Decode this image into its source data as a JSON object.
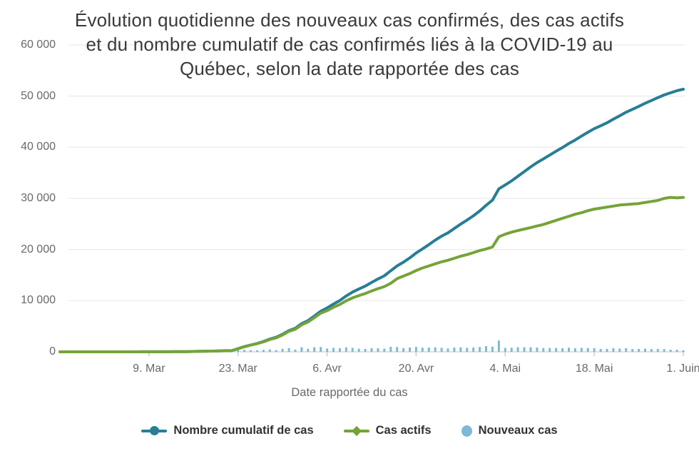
{
  "title": {
    "full": "Évolution quotidienne des nouveaux cas confirmés, des cas actifs et du nombre cumulatif de cas confirmés liés à la COVID-19 au Québec, selon la date rapportée des cas",
    "lines": [
      "Évolution quotidienne des nouveaux cas confirmés, des cas actifs",
      "et du nombre cumulatif de cas confirmés liés à la COVID-19 au",
      "Québec, selon la date rapportée des cas"
    ]
  },
  "colors": {
    "cumulative_line": "#277e95",
    "active_line": "#75a338",
    "new_cases_bar": "#7db9d6",
    "grid_line": "#e6e6e6",
    "axis_line": "#ccdbe2",
    "tick_mark": "#c5cdd2",
    "axis_text": "#66696e",
    "title_text": "#3a3a3a",
    "legend_text": "#323232"
  },
  "chart_data": {
    "type": "line+bar",
    "x_unit": "day",
    "x_range": [
      "2020-02-24",
      "2020-06-01"
    ],
    "days": 99,
    "x_axis": {
      "title": "Date rapportée du cas",
      "ticks": [
        {
          "label": "9. Mar",
          "day": 14
        },
        {
          "label": "23. Mar",
          "day": 28
        },
        {
          "label": "6. Avr",
          "day": 42
        },
        {
          "label": "20. Avr",
          "day": 56
        },
        {
          "label": "4. Mai",
          "day": 70
        },
        {
          "label": "18. Mai",
          "day": 84
        },
        {
          "label": "1. Juin",
          "day": 98
        }
      ]
    },
    "y_axis": {
      "max": 60000,
      "min": 0,
      "grid": true,
      "ticks": [
        {
          "label": "0",
          "value": 0
        },
        {
          "label": "10 000",
          "value": 10000
        },
        {
          "label": "20 000",
          "value": 20000
        },
        {
          "label": "30 000",
          "value": 30000
        },
        {
          "label": "40 000",
          "value": 40000
        },
        {
          "label": "50 000",
          "value": 50000
        },
        {
          "label": "60 000",
          "value": 60000
        }
      ]
    },
    "legend_position": "bottom-center",
    "series": [
      {
        "name": "Nombre cumulatif de cas",
        "type": "line",
        "marker": "circle",
        "color_key": "cumulative_line",
        "values": [
          0,
          0,
          0,
          0,
          1,
          1,
          1,
          1,
          1,
          2,
          2,
          3,
          4,
          7,
          8,
          9,
          13,
          17,
          24,
          35,
          41,
          74,
          94,
          121,
          139,
          181,
          219,
          221,
          628,
          1013,
          1339,
          1629,
          2021,
          2498,
          2840,
          3430,
          4162,
          4611,
          5518,
          6101,
          6997,
          7944,
          8580,
          9340,
          10031,
          10912,
          11677,
          12292,
          12846,
          13557,
          14248,
          14860,
          15857,
          16798,
          17521,
          18357,
          19319,
          20126,
          20965,
          21838,
          22616,
          23267,
          24109,
          24982,
          25757,
          26594,
          27538,
          28648,
          29656,
          31865,
          32623,
          33417,
          34327,
          35238,
          36150,
          36986,
          37721,
          38469,
          39225,
          39931,
          40724,
          41420,
          42183,
          42920,
          43627,
          44197,
          44775,
          45495,
          46141,
          46847,
          47411,
          47984,
          48598,
          49139,
          49702,
          50232,
          50651,
          51059,
          51354
        ]
      },
      {
        "name": "Cas actifs",
        "type": "line",
        "marker": "diamond",
        "color_key": "active_line",
        "values": [
          0,
          0,
          0,
          0,
          1,
          1,
          1,
          1,
          1,
          2,
          2,
          3,
          4,
          7,
          8,
          9,
          13,
          17,
          24,
          35,
          41,
          74,
          94,
          120,
          138,
          180,
          215,
          218,
          615,
          990,
          1305,
          1585,
          1960,
          2420,
          2740,
          3300,
          4000,
          4420,
          5280,
          5830,
          6670,
          7560,
          8050,
          8700,
          9250,
          9970,
          10550,
          11000,
          11400,
          11900,
          12350,
          12750,
          13400,
          14300,
          14800,
          15300,
          15900,
          16400,
          16800,
          17200,
          17600,
          17900,
          18300,
          18700,
          19000,
          19400,
          19800,
          20100,
          20500,
          22500,
          23000,
          23400,
          23700,
          24000,
          24300,
          24600,
          24900,
          25300,
          25700,
          26100,
          26500,
          26900,
          27200,
          27600,
          27900,
          28100,
          28300,
          28500,
          28700,
          28800,
          28900,
          29000,
          29200,
          29400,
          29600,
          30000,
          30200,
          30100,
          30200
        ]
      },
      {
        "name": "Nouveaux cas",
        "type": "bar",
        "marker": "big-circle",
        "color_key": "new_cases_bar",
        "values": [
          0,
          0,
          0,
          0,
          1,
          0,
          0,
          0,
          0,
          1,
          0,
          1,
          1,
          3,
          1,
          1,
          4,
          4,
          7,
          11,
          6,
          33,
          20,
          27,
          18,
          42,
          38,
          2,
          407,
          385,
          326,
          290,
          392,
          477,
          342,
          590,
          732,
          449,
          907,
          583,
          896,
          947,
          636,
          760,
          691,
          881,
          765,
          615,
          554,
          711,
          691,
          612,
          997,
          941,
          723,
          836,
          962,
          807,
          839,
          873,
          778,
          651,
          842,
          873,
          775,
          837,
          944,
          1110,
          1008,
          2209,
          758,
          794,
          910,
          911,
          912,
          836,
          735,
          748,
          756,
          706,
          793,
          696,
          763,
          737,
          707,
          570,
          578,
          720,
          646,
          706,
          564,
          573,
          614,
          541,
          563,
          530,
          419,
          408,
          295
        ]
      }
    ]
  }
}
